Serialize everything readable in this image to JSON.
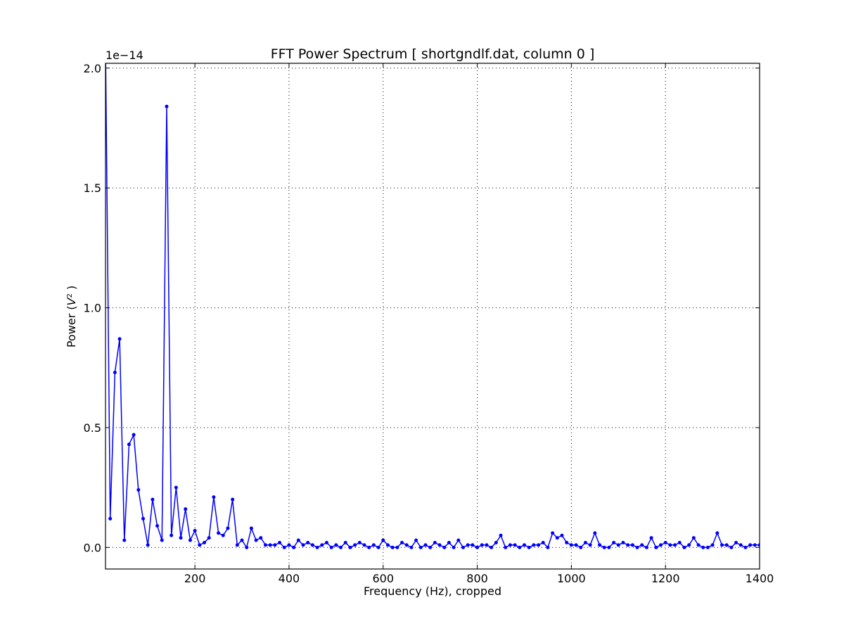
{
  "chart_data": {
    "type": "line",
    "title": "FFT Power Spectrum  [ shortgndlf.dat, column 0 ]",
    "xlabel": "Frequency (Hz),  cropped",
    "ylabel_prefix": "Power (",
    "ylabel_var": "V",
    "ylabel_exp": "2",
    "ylabel_suffix": " )",
    "y_offset_label": "1e−14",
    "xlim": [
      10,
      1400
    ],
    "ylim": [
      -0.09,
      2.02
    ],
    "x_ticks": [
      200,
      400,
      600,
      800,
      1000,
      1200,
      1400
    ],
    "x_tick_labels": [
      "200",
      "400",
      "600",
      "800",
      "1000",
      "1200",
      "1400"
    ],
    "y_ticks": [
      0.0,
      0.5,
      1.0,
      1.5,
      2.0
    ],
    "y_tick_labels": [
      "0.0",
      "0.5",
      "1.0",
      "1.5",
      "2.0"
    ],
    "grid": true,
    "marker": "dot",
    "color": "#0000ff",
    "series": [
      {
        "x": [
          10,
          20,
          30,
          40,
          50,
          60,
          70,
          80,
          90,
          100,
          110,
          120,
          130,
          140,
          150,
          160,
          170,
          180,
          190,
          200,
          210,
          220,
          230,
          240,
          250,
          260,
          270,
          280,
          290,
          300,
          310,
          320,
          330,
          340,
          350,
          360,
          370,
          380,
          390,
          400,
          410,
          420,
          430,
          440,
          450,
          460,
          470,
          480,
          490,
          500,
          510,
          520,
          530,
          540,
          550,
          560,
          570,
          580,
          590,
          600,
          610,
          620,
          630,
          640,
          650,
          660,
          670,
          680,
          690,
          700,
          710,
          720,
          730,
          740,
          750,
          760,
          770,
          780,
          790,
          800,
          810,
          820,
          830,
          840,
          850,
          860,
          870,
          880,
          890,
          900,
          910,
          920,
          930,
          940,
          950,
          960,
          970,
          980,
          990,
          1000,
          1010,
          1020,
          1030,
          1040,
          1050,
          1060,
          1070,
          1080,
          1090,
          1100,
          1110,
          1120,
          1130,
          1140,
          1150,
          1160,
          1170,
          1180,
          1190,
          1200,
          1210,
          1220,
          1230,
          1240,
          1250,
          1260,
          1270,
          1280,
          1290,
          1300,
          1310,
          1320,
          1330,
          1340,
          1350,
          1360,
          1370,
          1380,
          1390,
          1400
        ],
        "y": [
          2.1,
          0.12,
          0.73,
          0.87,
          0.03,
          0.43,
          0.47,
          0.24,
          0.12,
          0.01,
          0.2,
          0.09,
          0.03,
          1.84,
          0.05,
          0.25,
          0.04,
          0.16,
          0.03,
          0.07,
          0.01,
          0.02,
          0.04,
          0.21,
          0.06,
          0.05,
          0.08,
          0.2,
          0.01,
          0.03,
          0.0,
          0.08,
          0.03,
          0.04,
          0.01,
          0.01,
          0.01,
          0.02,
          0.0,
          0.01,
          0.0,
          0.03,
          0.01,
          0.02,
          0.01,
          0.0,
          0.01,
          0.02,
          0.0,
          0.01,
          0.0,
          0.02,
          0.0,
          0.01,
          0.02,
          0.01,
          0.0,
          0.01,
          0.0,
          0.03,
          0.01,
          0.0,
          0.0,
          0.02,
          0.01,
          0.0,
          0.03,
          0.0,
          0.01,
          0.0,
          0.02,
          0.01,
          0.0,
          0.02,
          0.0,
          0.03,
          0.0,
          0.01,
          0.01,
          0.0,
          0.01,
          0.01,
          0.0,
          0.02,
          0.05,
          0.0,
          0.01,
          0.01,
          0.0,
          0.01,
          0.0,
          0.01,
          0.01,
          0.02,
          0.0,
          0.06,
          0.04,
          0.05,
          0.02,
          0.01,
          0.01,
          0.0,
          0.02,
          0.01,
          0.06,
          0.01,
          0.0,
          0.0,
          0.02,
          0.01,
          0.02,
          0.01,
          0.01,
          0.0,
          0.01,
          0.0,
          0.04,
          0.0,
          0.01,
          0.02,
          0.01,
          0.01,
          0.02,
          0.0,
          0.01,
          0.04,
          0.01,
          0.0,
          0.0,
          0.01,
          0.06,
          0.01,
          0.01,
          0.0,
          0.02,
          0.01,
          0.0,
          0.01,
          0.01,
          0.01
        ]
      }
    ]
  }
}
